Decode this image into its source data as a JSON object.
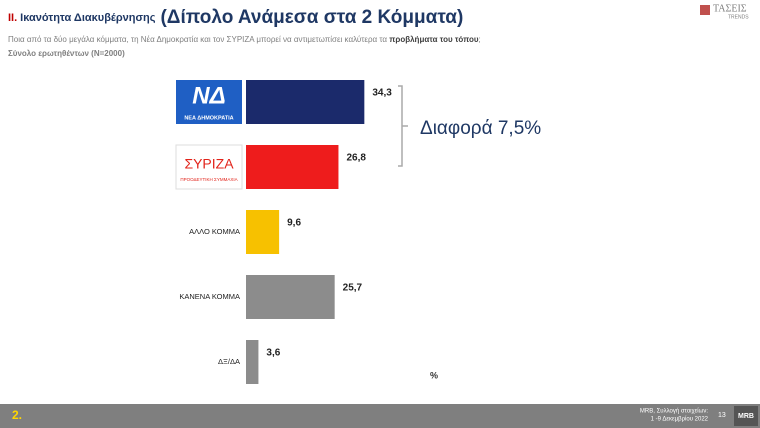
{
  "chart_data": {
    "type": "bar",
    "title_prefix": "II.",
    "title": "Ικανότητα Διακυβέρνησης",
    "title_main": "(Δίπολο Ανάμεσα στα 2 Κόμματα)",
    "subtitle": "Ποια από τα δύο μεγάλα κόμματα, τη Νέα Δημοκρατία και τον ΣΥΡΙΖΑ μπορεί να αντιμετωπίσει καλύτερα  τα ",
    "subtitle_bold": "προβλήματα του τόπου",
    "subtitle_end": ";",
    "base": "Σύνολο ερωτηθέντων (Ν=2000)",
    "categories": [
      "ΝΔ",
      "ΣΥΡΙΖΑ",
      "ΑΛΛΟ ΚΟΜΜΑ",
      "ΚΑΝΕΝΑ ΚΟΜΜΑ",
      "ΔΞ/ΔΑ"
    ],
    "logo_taglines": [
      "ΝΕΑ ΔΗΜΟΚΡΑΤΙΑ",
      "ΠΡΟΟΔΕΥΤΙΚΗ ΣΥΜΜΑΧΙΑ"
    ],
    "values": [
      34.3,
      26.8,
      9.6,
      25.7,
      3.6
    ],
    "value_labels": [
      "34,3",
      "26,8",
      "9,6",
      "25,7",
      "3,6"
    ],
    "colors": [
      "#1b2a6b",
      "#ee1c1c",
      "#f7c100",
      "#8c8c8c",
      "#8c8c8c"
    ],
    "annotation": "Διαφορά 7,5%",
    "unit": "%"
  },
  "brand": {
    "name": "ΤΑΣΕΙΣ",
    "sub": "TRENDS"
  },
  "footer": {
    "page_label": "2.",
    "source": "MRB, Συλλογή στοιχείων:",
    "dates": "1 -9 Δεκεμβρίου 2022",
    "page_number": "13",
    "logo": "MRB"
  }
}
